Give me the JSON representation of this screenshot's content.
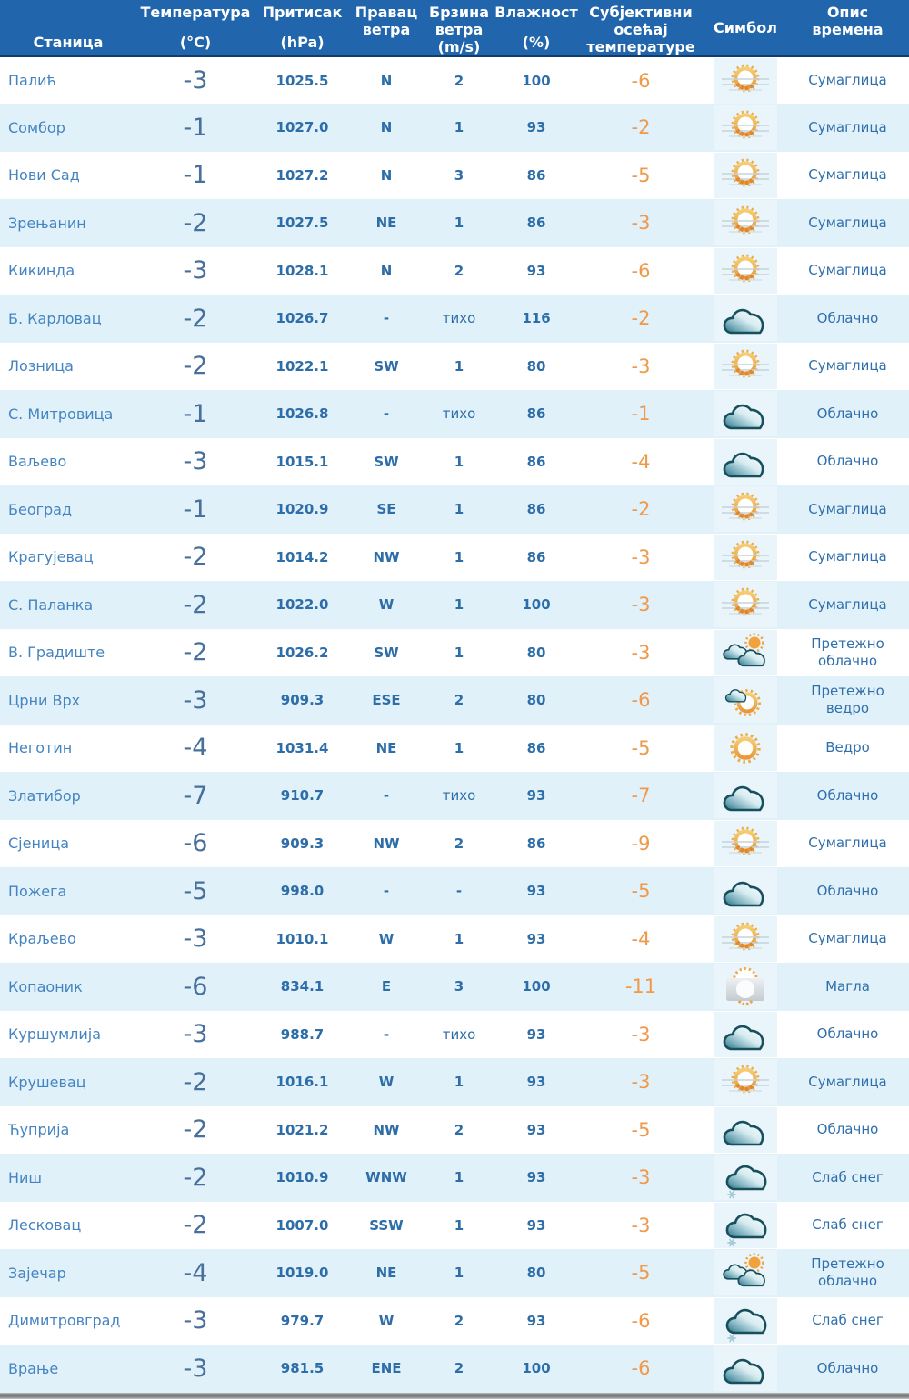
{
  "colors": {
    "header_bg": "#2166ad",
    "header_text": "#ffffff",
    "header_border": "#123c6d",
    "row_bg": "#ffffff",
    "row_alt_bg": "#e1f1fa",
    "station_text": "#4484c1",
    "value_text": "#2d6da8",
    "temperature_text": "#48709c",
    "feels_like_text": "#f0994a",
    "description_text": "#2f6fab",
    "icon_box_bg": "#e9f4fb",
    "sun_orange": "#eda53b",
    "cloud_teal": "#2a6f80"
  },
  "table": {
    "headers": [
      {
        "name": "station",
        "align": "h-bottom",
        "lines": [
          "Станица"
        ]
      },
      {
        "name": "temperature",
        "align": "h-split",
        "lines": [
          "Температура",
          "(°C)"
        ]
      },
      {
        "name": "pressure",
        "align": "h-split",
        "lines": [
          "Притисак",
          "(hPa)"
        ]
      },
      {
        "name": "wind-direction",
        "align": "h-top",
        "lines": [
          "Правац",
          "ветра"
        ]
      },
      {
        "name": "wind-speed",
        "align": "h-spread",
        "lines": [
          "Брзина",
          "ветра",
          "(m/s)"
        ]
      },
      {
        "name": "humidity",
        "align": "h-split",
        "lines": [
          "Влажност",
          "(%)"
        ]
      },
      {
        "name": "feels-like",
        "align": "h-spread",
        "lines": [
          "Субјективни",
          "осећај",
          "температуре"
        ]
      },
      {
        "name": "symbol",
        "align": "h-center",
        "lines": [
          "Симбол"
        ]
      },
      {
        "name": "description",
        "align": "h-top",
        "lines": [
          "Опис",
          "времена"
        ]
      }
    ],
    "rows": [
      {
        "station": "Палић",
        "temperature": "-3",
        "pressure": "1025.5",
        "wind_direction": "N",
        "wind_speed": "2",
        "humidity": "100",
        "feels_like": "-6",
        "symbol": "mist-sun-icon",
        "description": "Сумаглица"
      },
      {
        "station": "Сомбор",
        "temperature": "-1",
        "pressure": "1027.0",
        "wind_direction": "N",
        "wind_speed": "1",
        "humidity": "93",
        "feels_like": "-2",
        "symbol": "mist-sun-icon",
        "description": "Сумаглица"
      },
      {
        "station": "Нови Сад",
        "temperature": "-1",
        "pressure": "1027.2",
        "wind_direction": "N",
        "wind_speed": "3",
        "humidity": "86",
        "feels_like": "-5",
        "symbol": "mist-sun-icon",
        "description": "Сумаглица"
      },
      {
        "station": "Зрењанин",
        "temperature": "-2",
        "pressure": "1027.5",
        "wind_direction": "NE",
        "wind_speed": "1",
        "humidity": "86",
        "feels_like": "-3",
        "symbol": "mist-sun-icon",
        "description": "Сумаглица"
      },
      {
        "station": "Кикинда",
        "temperature": "-3",
        "pressure": "1028.1",
        "wind_direction": "N",
        "wind_speed": "2",
        "humidity": "93",
        "feels_like": "-6",
        "symbol": "mist-sun-icon",
        "description": "Сумаглица"
      },
      {
        "station": "Б. Карловац",
        "temperature": "-2",
        "pressure": "1026.7",
        "wind_direction": "-",
        "wind_speed": "тихо",
        "humidity": "116",
        "feels_like": "-2",
        "symbol": "cloud-icon",
        "description": "Облачно"
      },
      {
        "station": "Лозница",
        "temperature": "-2",
        "pressure": "1022.1",
        "wind_direction": "SW",
        "wind_speed": "1",
        "humidity": "80",
        "feels_like": "-3",
        "symbol": "mist-sun-icon",
        "description": "Сумаглица"
      },
      {
        "station": "С. Митровица",
        "temperature": "-1",
        "pressure": "1026.8",
        "wind_direction": "-",
        "wind_speed": "тихо",
        "humidity": "86",
        "feels_like": "-1",
        "symbol": "cloud-icon",
        "description": "Облачно"
      },
      {
        "station": "Ваљево",
        "temperature": "-3",
        "pressure": "1015.1",
        "wind_direction": "SW",
        "wind_speed": "1",
        "humidity": "86",
        "feels_like": "-4",
        "symbol": "cloud-icon",
        "description": "Облачно"
      },
      {
        "station": "Београд",
        "temperature": "-1",
        "pressure": "1020.9",
        "wind_direction": "SE",
        "wind_speed": "1",
        "humidity": "86",
        "feels_like": "-2",
        "symbol": "mist-sun-icon",
        "description": "Сумаглица"
      },
      {
        "station": "Крагујевац",
        "temperature": "-2",
        "pressure": "1014.2",
        "wind_direction": "NW",
        "wind_speed": "1",
        "humidity": "86",
        "feels_like": "-3",
        "symbol": "mist-sun-icon",
        "description": "Сумаглица"
      },
      {
        "station": "С. Паланка",
        "temperature": "-2",
        "pressure": "1022.0",
        "wind_direction": "W",
        "wind_speed": "1",
        "humidity": "100",
        "feels_like": "-3",
        "symbol": "mist-sun-icon",
        "description": "Сумаглица"
      },
      {
        "station": "В. Градиште",
        "temperature": "-2",
        "pressure": "1026.2",
        "wind_direction": "SW",
        "wind_speed": "1",
        "humidity": "80",
        "feels_like": "-3",
        "symbol": "sun-clouds-icon",
        "description": "Претежно облачно"
      },
      {
        "station": "Црни Врх",
        "temperature": "-3",
        "pressure": "909.3",
        "wind_direction": "ESE",
        "wind_speed": "2",
        "humidity": "80",
        "feels_like": "-6",
        "symbol": "sun-small-cloud-icon",
        "description": "Претежно ведро"
      },
      {
        "station": "Неготин",
        "temperature": "-4",
        "pressure": "1031.4",
        "wind_direction": "NE",
        "wind_speed": "1",
        "humidity": "86",
        "feels_like": "-5",
        "symbol": "sun-icon",
        "description": "Ведро"
      },
      {
        "station": "Златибор",
        "temperature": "-7",
        "pressure": "910.7",
        "wind_direction": "-",
        "wind_speed": "тихо",
        "humidity": "93",
        "feels_like": "-7",
        "symbol": "cloud-icon",
        "description": "Облачно"
      },
      {
        "station": "Сјеница",
        "temperature": "-6",
        "pressure": "909.3",
        "wind_direction": "NW",
        "wind_speed": "2",
        "humidity": "86",
        "feels_like": "-9",
        "symbol": "mist-sun-icon",
        "description": "Сумаглица"
      },
      {
        "station": "Пожега",
        "temperature": "-5",
        "pressure": "998.0",
        "wind_direction": "-",
        "wind_speed": "-",
        "humidity": "93",
        "feels_like": "-5",
        "symbol": "cloud-icon",
        "description": "Облачно"
      },
      {
        "station": "Краљево",
        "temperature": "-3",
        "pressure": "1010.1",
        "wind_direction": "W",
        "wind_speed": "1",
        "humidity": "93",
        "feels_like": "-4",
        "symbol": "mist-sun-icon",
        "description": "Сумаглица"
      },
      {
        "station": "Копаоник",
        "temperature": "-6",
        "pressure": "834.1",
        "wind_direction": "E",
        "wind_speed": "3",
        "humidity": "100",
        "feels_like": "-11",
        "symbol": "fog-sun-icon",
        "description": "Магла"
      },
      {
        "station": "Куршумлија",
        "temperature": "-3",
        "pressure": "988.7",
        "wind_direction": "-",
        "wind_speed": "тихо",
        "humidity": "93",
        "feels_like": "-3",
        "symbol": "cloud-icon",
        "description": "Облачно"
      },
      {
        "station": "Крушевац",
        "temperature": "-2",
        "pressure": "1016.1",
        "wind_direction": "W",
        "wind_speed": "1",
        "humidity": "93",
        "feels_like": "-3",
        "symbol": "mist-sun-icon",
        "description": "Сумаглица"
      },
      {
        "station": "Ћуприја",
        "temperature": "-2",
        "pressure": "1021.2",
        "wind_direction": "NW",
        "wind_speed": "2",
        "humidity": "93",
        "feels_like": "-5",
        "symbol": "cloud-icon",
        "description": "Облачно"
      },
      {
        "station": "Ниш",
        "temperature": "-2",
        "pressure": "1010.9",
        "wind_direction": "WNW",
        "wind_speed": "1",
        "humidity": "93",
        "feels_like": "-3",
        "symbol": "cloud-snow-icon",
        "description": "Слаб снег"
      },
      {
        "station": "Лесковац",
        "temperature": "-2",
        "pressure": "1007.0",
        "wind_direction": "SSW",
        "wind_speed": "1",
        "humidity": "93",
        "feels_like": "-3",
        "symbol": "cloud-snow-icon",
        "description": "Слаб снег"
      },
      {
        "station": "Зајечар",
        "temperature": "-4",
        "pressure": "1019.0",
        "wind_direction": "NE",
        "wind_speed": "1",
        "humidity": "80",
        "feels_like": "-5",
        "symbol": "sun-clouds-icon",
        "description": "Претежно облачно"
      },
      {
        "station": "Димитровград",
        "temperature": "-3",
        "pressure": "979.7",
        "wind_direction": "W",
        "wind_speed": "2",
        "humidity": "93",
        "feels_like": "-6",
        "symbol": "cloud-snow-icon",
        "description": "Слаб снег"
      },
      {
        "station": "Врање",
        "temperature": "-3",
        "pressure": "981.5",
        "wind_direction": "ENE",
        "wind_speed": "2",
        "humidity": "100",
        "feels_like": "-6",
        "symbol": "cloud-icon",
        "description": "Облачно"
      }
    ]
  }
}
